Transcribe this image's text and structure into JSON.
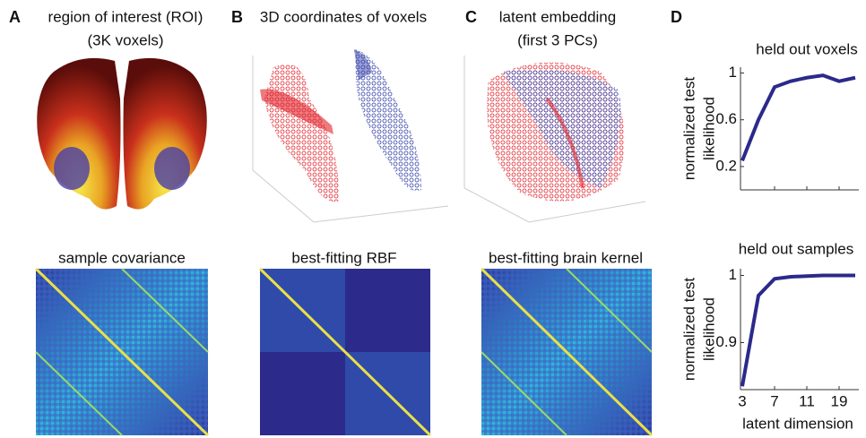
{
  "panels": [
    {
      "letter": "A",
      "title": "region of interest (ROI)",
      "subtitle": "(3K voxels)"
    },
    {
      "letter": "B",
      "title": "3D coordinates of voxels"
    },
    {
      "letter": "C",
      "title": "latent embedding",
      "subtitle": "(first 3 PCs)"
    },
    {
      "letter": "D"
    }
  ],
  "matrices": [
    "sample covariance",
    "best-fitting RBF",
    "best-fitting brain kernel"
  ],
  "chart_data": [
    {
      "type": "line",
      "title": "held out voxels",
      "ylabel": [
        "normalized test",
        "likelihood"
      ],
      "categories": [
        null,
        null,
        null,
        null,
        null,
        null,
        null,
        null
      ],
      "values": [
        0.25,
        0.6,
        0.88,
        0.93,
        0.96,
        0.98,
        0.93,
        0.96
      ],
      "color": "#2b2a8a",
      "ylim": [
        0,
        1.05
      ],
      "yticks": [
        0.2,
        0.6,
        1
      ]
    },
    {
      "type": "line",
      "title": "held out samples",
      "ylabel": [
        "normalized test",
        "likelihood"
      ],
      "xlabel": "latent dimension",
      "categories": [
        "3",
        null,
        "7",
        null,
        "11",
        null,
        "19",
        null
      ],
      "values": [
        0.835,
        0.97,
        0.995,
        0.998,
        0.999,
        1.0,
        1.0,
        1.0
      ],
      "color": "#2b2a8a",
      "ylim": [
        0.83,
        1.01
      ],
      "yticks": [
        0.9,
        1
      ]
    }
  ]
}
